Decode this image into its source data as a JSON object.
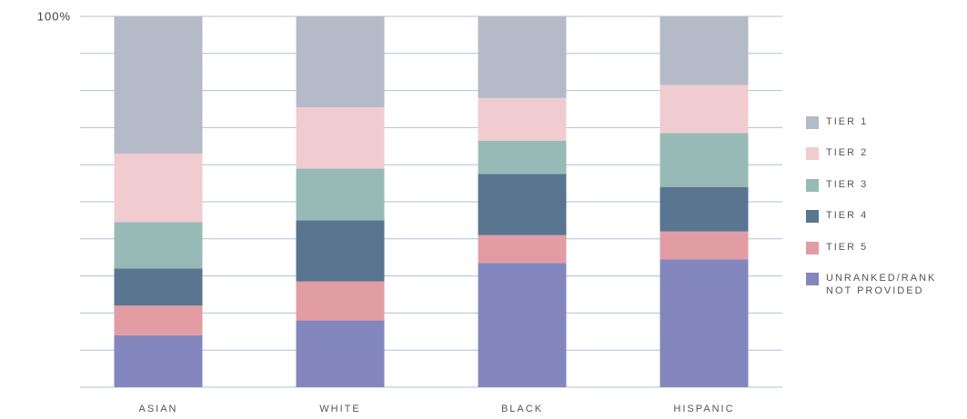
{
  "chart_data": {
    "type": "stacked_bar",
    "categories": [
      "ASIAN",
      "WHITE",
      "BLACK",
      "HISPANIC"
    ],
    "series": [
      {
        "name": "TIER 1",
        "color": "#b5bac8",
        "values": [
          37,
          24.5,
          22,
          18.5
        ]
      },
      {
        "name": "TIER 2",
        "color": "#f0ccd0",
        "values": [
          18.5,
          16.5,
          11.5,
          13
        ]
      },
      {
        "name": "TIER 3",
        "color": "#98bab7",
        "values": [
          12.5,
          14,
          9,
          14.5
        ]
      },
      {
        "name": "TIER 4",
        "color": "#5a7590",
        "values": [
          10,
          16.5,
          16.5,
          12
        ]
      },
      {
        "name": "TIER 5",
        "color": "#e19ca4",
        "values": [
          8,
          10.5,
          7.5,
          7.5
        ]
      },
      {
        "name": "UNRANKED/RANK NOT PROVIDED",
        "color": "#8387be",
        "values": [
          14,
          18,
          33.5,
          34.5
        ]
      }
    ],
    "ylim": [
      0,
      100
    ],
    "yticks": [
      {
        "value": 100,
        "label": "100%"
      }
    ],
    "grid_lines": [
      0,
      10,
      20,
      30,
      40,
      50,
      60,
      70,
      80,
      90,
      100
    ],
    "grid": true,
    "grid_color": "#a9c4d6",
    "legend": "right"
  }
}
